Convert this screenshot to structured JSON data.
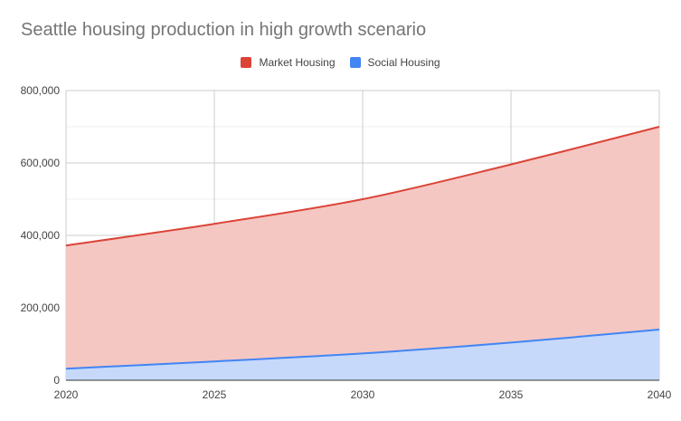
{
  "chart_data": {
    "type": "area",
    "title": "Seattle housing production in high growth scenario",
    "xlabel": "",
    "ylabel": "",
    "x": [
      2020,
      2025,
      2030,
      2035,
      2040
    ],
    "xlim": [
      2020,
      2040
    ],
    "ylim": [
      0,
      800000
    ],
    "y_ticks": [
      "0",
      "200,000",
      "400,000",
      "600,000",
      "800,000"
    ],
    "x_ticks": [
      "2020",
      "2025",
      "2030",
      "2035",
      "2040"
    ],
    "stacked": false,
    "grid": true,
    "legend_position": "top",
    "series": [
      {
        "name": "Market Housing",
        "color": "#db4437",
        "fill": "#f4c7c3",
        "values": [
          372000,
          432000,
          500000,
          596000,
          700000
        ]
      },
      {
        "name": "Social Housing",
        "color": "#4285f4",
        "fill": "#c6d9fb",
        "values": [
          32000,
          52000,
          74000,
          104000,
          140000
        ]
      }
    ]
  }
}
